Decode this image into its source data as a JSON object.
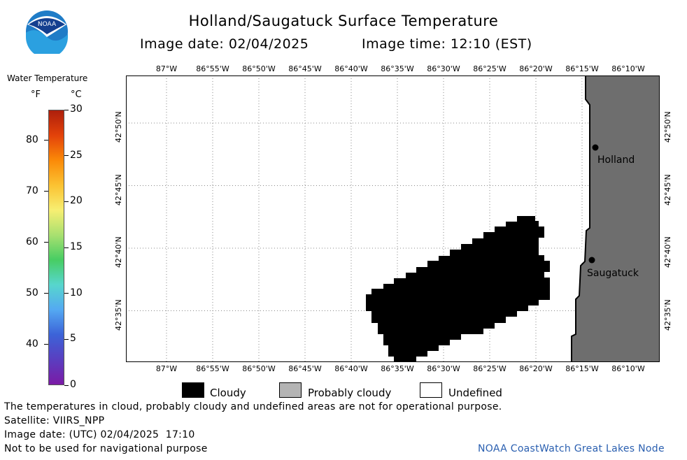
{
  "header": {
    "title": "Holland/Saugatuck Surface Temperature",
    "image_date_label": "Image date: 02/04/2025",
    "image_time_label": "Image time: 12:10 (EST)"
  },
  "logo": {
    "text": "NOAA",
    "color": "#1f7cc7"
  },
  "scale": {
    "title": "Water Temperature",
    "unit_f": "°F",
    "unit_c": "°C",
    "f_ticks": [
      "80",
      "70",
      "60",
      "50",
      "40"
    ],
    "c_ticks": [
      "30",
      "25",
      "20",
      "15",
      "10",
      "5",
      "0"
    ],
    "colors": [
      "#ad1f0c",
      "#e3420a",
      "#fb8a08",
      "#fbc232",
      "#f7ef72",
      "#a8e070",
      "#47cd63",
      "#57d6cd",
      "#54a9f2",
      "#3c63d8",
      "#5a3ec0",
      "#7b1ba6"
    ]
  },
  "map": {
    "lon_labels": [
      "87°W",
      "86°55'W",
      "86°50'W",
      "86°45'W",
      "86°40'W",
      "86°35'W",
      "86°30'W",
      "86°25'W",
      "86°20'W",
      "86°15'W",
      "86°10'W"
    ],
    "lat_labels": [
      "42°50'N",
      "42°45'N",
      "42°40'N",
      "42°35'N"
    ],
    "places": [
      {
        "name": "Holland"
      },
      {
        "name": "Saugatuck"
      }
    ],
    "land_color": "#6e6e6e",
    "cloud_color": "#000000"
  },
  "legend": {
    "cloudy": "Cloudy",
    "probably_cloudy": "Probably cloudy",
    "undefined": "Undefined"
  },
  "footer": {
    "note": "The temperatures in cloud, probably cloudy and undefined areas are not for operational purpose.",
    "satellite": "Satellite: VIIRS_NPP",
    "utc_date": "Image date: (UTC) 02/04/2025  17:10",
    "nav_warning": "Not to be used for navigational purpose",
    "credit": "NOAA CoastWatch Great Lakes Node"
  }
}
